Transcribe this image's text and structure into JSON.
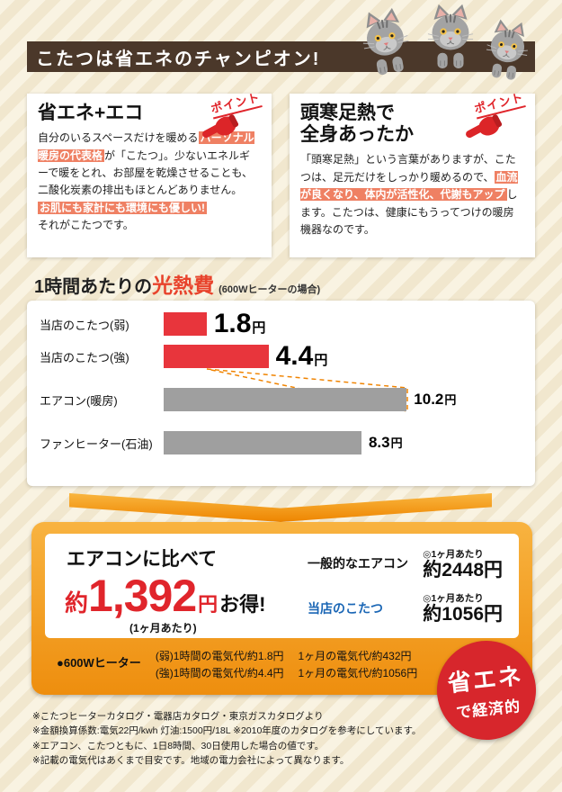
{
  "header": {
    "title": "こたつは省エネのチャンピオン!"
  },
  "point_label": "ポイント",
  "eco_box": {
    "title": "省エネ+エコ",
    "t1": "自分のいるスペースだけを暖める",
    "h1": "パーソナル暖房の代表格",
    "t2": "が「こたつ」。少ないエネルギーで暖をとれ、お部屋を乾燥させることも、二酸化炭素の排出もほとんどありません。",
    "h2": "お肌にも家計にも環境にも優しい!",
    "t3": "それがこたつです。"
  },
  "warm_box": {
    "title_line1": "頭寒足熱で",
    "title_line2": "全身あったか",
    "t1": "「頭寒足熱」という言葉がありますが、こたつは、足元だけをしっかり暖めるので、",
    "h1": "血流が良くなり、体内が活性化、代謝もアップ",
    "t2": "します。こたつは、健康にもうってつけの暖房機器なのです。"
  },
  "chart_heading": {
    "prefix": "1時間あたりの",
    "highlight": "光熱費",
    "note": "(600Wヒーターの場合)"
  },
  "chart_data": {
    "type": "bar",
    "orientation": "horizontal",
    "title": "1時間あたりの光熱費(600Wヒーターの場合)",
    "categories": [
      "当店のこたつ(弱)",
      "当店のこたつ(強)",
      "エアコン(暖房)",
      "ファンヒーター(石油)"
    ],
    "values": [
      1.8,
      4.4,
      10.2,
      8.3
    ],
    "unit": "円",
    "bar_colors": [
      "#e8353c",
      "#e8353c",
      "#9f9f9f",
      "#9f9f9f"
    ],
    "xlim": [
      0,
      11
    ],
    "grid": false,
    "legend": "none"
  },
  "savings": {
    "headline": "エアコンに比べて",
    "approx": "約",
    "amount": "1,392",
    "unit": "円",
    "suffix": "お得!",
    "note": "(1ヶ月あたり)",
    "rows": [
      {
        "label": "一般的なエアコン",
        "per": "◎1ヶ月あたり",
        "amount": "約2448円"
      },
      {
        "label": "当店のこたつ",
        "per": "◎1ヶ月あたり",
        "amount": "約1056円"
      }
    ],
    "heater_label": "●600Wヒーター",
    "heater_details": [
      [
        "(弱)1時間の電気代/約1.8円",
        "1ヶ月の電気代/約432円"
      ],
      [
        "(強)1時間の電気代/約4.4円",
        "1ヶ月の電気代/約1056円"
      ]
    ]
  },
  "footnotes": [
    "※こたつヒーターカタログ・電器店カタログ・東京ガスカタログより",
    "※金額換算係数:電気22円/kwh 灯油:1500円/18L ※2010年度のカタログを参考にしています。",
    "※エアコン、こたつともに、1日8時間、30日使用した場合の値です。",
    "※記載の電気代はあくまで目安です。地域の電力会社によって異なります。"
  ],
  "badge": {
    "line1": "省エネ",
    "line2": "で経済的"
  },
  "colors": {
    "header_brown": "#4b382a",
    "accent_red": "#e0252b",
    "bar_red": "#e8353c",
    "bar_gray": "#9f9f9f",
    "highlight_salmon": "#ef8063",
    "panel_orange": "#ee8e0e",
    "link_blue": "#1a66b5",
    "badge_red": "#d7262c"
  }
}
